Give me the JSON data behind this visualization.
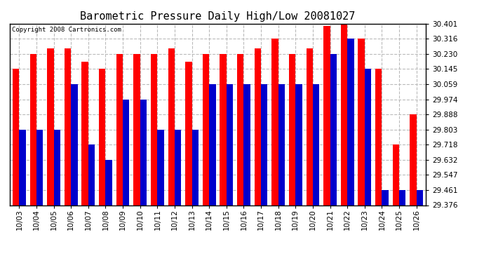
{
  "title": "Barometric Pressure Daily High/Low 20081027",
  "copyright": "Copyright 2008 Cartronics.com",
  "dates": [
    "10/03",
    "10/04",
    "10/05",
    "10/06",
    "10/07",
    "10/08",
    "10/09",
    "10/10",
    "10/11",
    "10/12",
    "10/13",
    "10/14",
    "10/15",
    "10/16",
    "10/17",
    "10/18",
    "10/19",
    "10/20",
    "10/21",
    "10/22",
    "10/23",
    "10/24",
    "10/25",
    "10/26"
  ],
  "highs": [
    30.145,
    30.23,
    30.262,
    30.262,
    30.187,
    30.145,
    30.23,
    30.23,
    30.23,
    30.262,
    30.187,
    30.23,
    30.23,
    30.23,
    30.262,
    30.316,
    30.23,
    30.262,
    30.387,
    30.401,
    30.316,
    30.145,
    29.718,
    29.888
  ],
  "lows": [
    29.803,
    29.803,
    29.803,
    30.059,
    29.718,
    29.632,
    29.974,
    29.974,
    29.803,
    29.803,
    29.803,
    30.059,
    30.059,
    30.059,
    30.059,
    30.059,
    30.059,
    30.059,
    30.23,
    30.316,
    30.145,
    29.462,
    29.461,
    29.461
  ],
  "ymin": 29.376,
  "ymax": 30.401,
  "yticks": [
    29.376,
    29.461,
    29.547,
    29.632,
    29.718,
    29.803,
    29.888,
    29.974,
    30.059,
    30.145,
    30.23,
    30.316,
    30.401
  ],
  "bar_width": 0.38,
  "high_color": "#ff0000",
  "low_color": "#0000cc",
  "bg_color": "#ffffff",
  "grid_color": "#bbbbbb",
  "title_fontsize": 11
}
